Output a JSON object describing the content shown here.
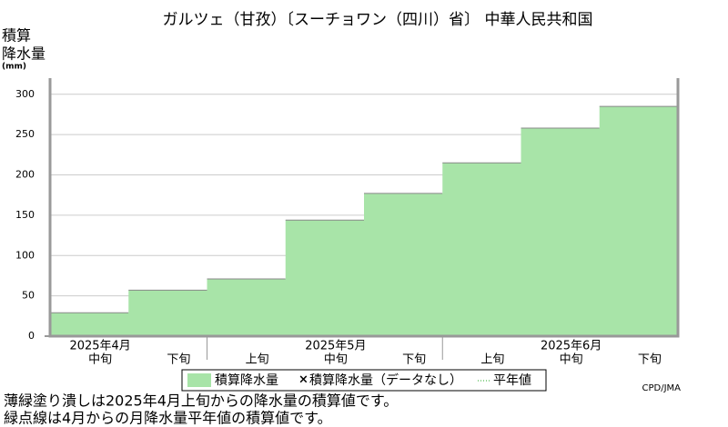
{
  "chart_data": {
    "type": "step-area",
    "title": "ガルツェ（甘孜）〔スーチョワン（四川）省〕 中華人民共和国",
    "y_label": [
      "積算",
      "降水量",
      "(mm)"
    ],
    "groups": [
      {
        "label": "2025年4月",
        "categories": [
          "中旬",
          "下旬"
        ]
      },
      {
        "label": "2025年5月",
        "categories": [
          "上旬",
          "中旬",
          "下旬"
        ]
      },
      {
        "label": "2025年6月",
        "categories": [
          "上旬",
          "中旬",
          "下旬"
        ]
      }
    ],
    "series": [
      {
        "name": "積算降水量",
        "color": "#a8e4a8",
        "values": [
          29,
          57,
          71,
          144,
          177,
          215,
          258,
          285
        ]
      }
    ],
    "legend": [
      "積算降水量（データなし）",
      "平年値"
    ],
    "ylim": [
      0,
      320
    ],
    "yticks": [
      0,
      50,
      100,
      150,
      200,
      250,
      300
    ],
    "grid": true,
    "credit": "CPD/JMA",
    "notes": [
      "薄緑塗り潰しは2025年4月上旬からの降水量の積算値です。",
      "緑点線は4月からの月降水量平年値の積算値です。"
    ]
  }
}
